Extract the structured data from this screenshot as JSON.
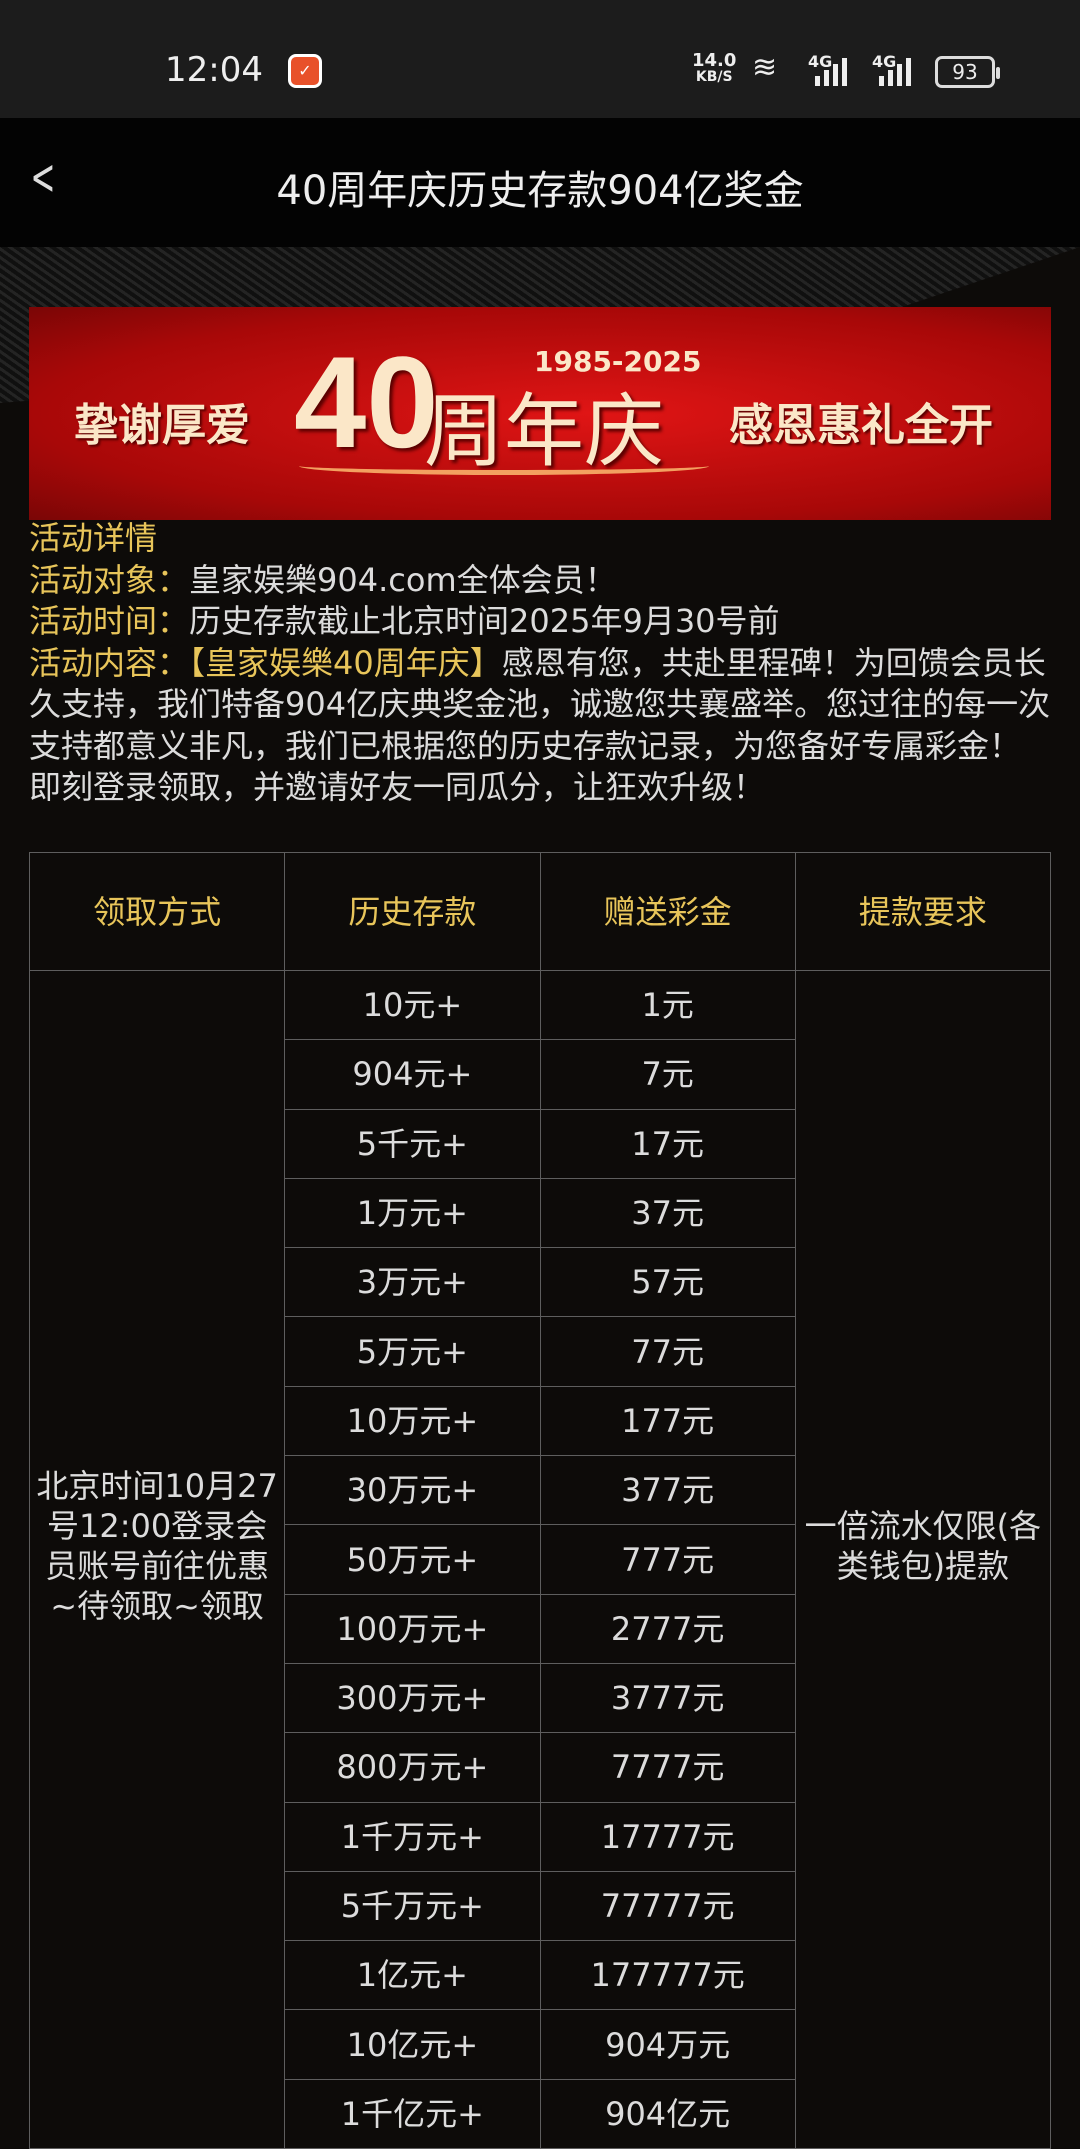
{
  "status_bar": {
    "time": "12:04",
    "net_speed": "14.0",
    "net_unit": "KB/S",
    "sim1": "4G",
    "sim2": "4G",
    "battery": "93"
  },
  "header": {
    "title": "40周年庆历史存款904亿奖金"
  },
  "banner": {
    "left_text": "挚谢厚爱",
    "number": "40",
    "suffix": "周年庆",
    "years": "1985-2025",
    "right_text": "感恩惠礼全开"
  },
  "details": {
    "heading": "活动详情",
    "target_label": "活动对象：",
    "target_value": "皇家娱樂904.com全体会员！",
    "time_label": "活动时间：",
    "time_value": "历史存款截止北京时间2025年9月30号前",
    "content_label": "活动内容：",
    "content_highlight": "【皇家娱樂40周年庆】",
    "content_value": "感恩有您，共赴里程碑！为回馈会员长久支持，我们特备904亿庆典奖金池，诚邀您共襄盛举。您过往的每一次支持都意义非凡，我们已根据您的历史存款记录，为您备好专属彩金！即刻登录领取，并邀请好友一同瓜分，让狂欢升级！"
  },
  "table": {
    "headers": [
      "领取方式",
      "历史存款",
      "赠送彩金",
      "提款要求"
    ],
    "claim_method": "北京时间10月27号12:00登录会员账号前往优惠~待领取~领取",
    "withdraw_requirement": "一倍流水仅限(各类钱包)提款",
    "rows": [
      [
        "10元+",
        "1元"
      ],
      [
        "904元+",
        "7元"
      ],
      [
        "5千元+",
        "17元"
      ],
      [
        "1万元+",
        "37元"
      ],
      [
        "3万元+",
        "57元"
      ],
      [
        "5万元+",
        "77元"
      ],
      [
        "10万元+",
        "177元"
      ],
      [
        "30万元+",
        "377元"
      ],
      [
        "50万元+",
        "777元"
      ],
      [
        "100万元+",
        "2777元"
      ],
      [
        "300万元+",
        "3777元"
      ],
      [
        "800万元+",
        "7777元"
      ],
      [
        "1千万元+",
        "17777元"
      ],
      [
        "5千万元+",
        "77777元"
      ],
      [
        "1亿元+",
        "177777元"
      ],
      [
        "10亿元+",
        "904万元"
      ],
      [
        "1千亿元+",
        "904亿元"
      ]
    ]
  },
  "colors": {
    "gold": "#e8c55a",
    "background": "#0d0b09",
    "banner_red": "#d01010"
  }
}
